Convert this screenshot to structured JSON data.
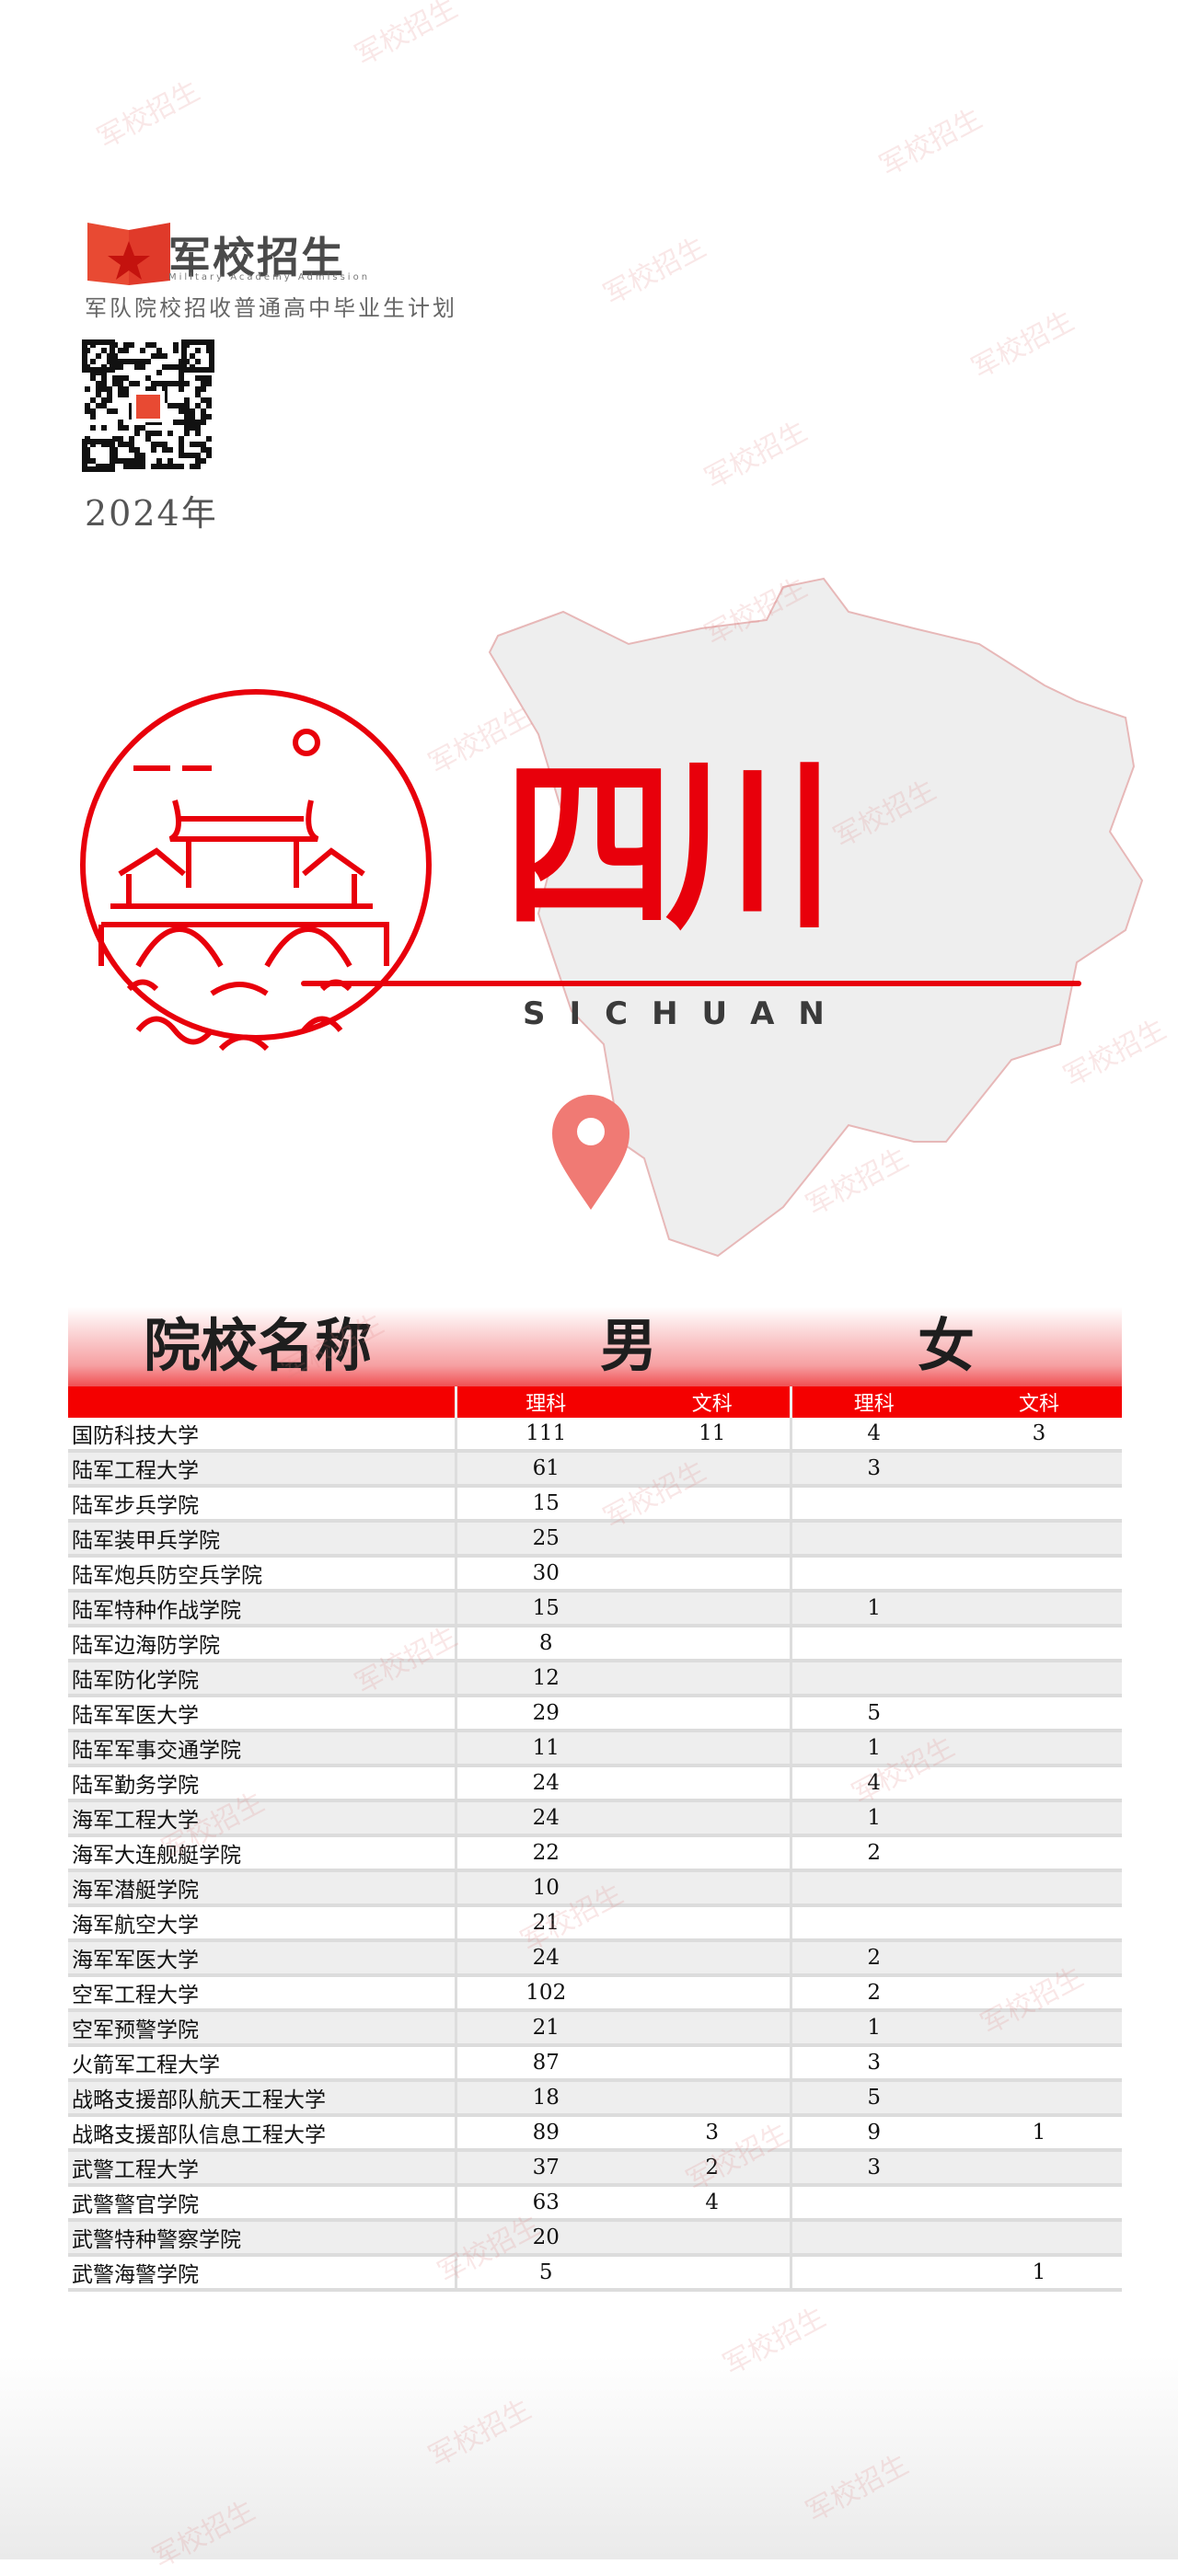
{
  "brand": {
    "name": "军校招生",
    "tagline": "Military Academy Admission",
    "subtitle": "军队院校招收普通高中毕业生计划",
    "year": "2024年",
    "accent": "#e8000b"
  },
  "hero": {
    "province": "四川",
    "pinyin": "SICHUAN",
    "pin_icon": "map-pin-icon",
    "emblem_icon": "bridge-pavilion-emblem-icon"
  },
  "watermark": "军校招生",
  "table": {
    "band_headers": {
      "name": "院校名称",
      "male": "男",
      "female": "女"
    },
    "sub_headers": [
      "",
      "理科",
      "文科",
      "理科",
      "文科"
    ],
    "rows": [
      [
        "国防科技大学",
        "111",
        "11",
        "4",
        "3"
      ],
      [
        "陆军工程大学",
        "61",
        "",
        "3",
        ""
      ],
      [
        "陆军步兵学院",
        "15",
        "",
        "",
        ""
      ],
      [
        "陆军装甲兵学院",
        "25",
        "",
        "",
        ""
      ],
      [
        "陆军炮兵防空兵学院",
        "30",
        "",
        "",
        ""
      ],
      [
        "陆军特种作战学院",
        "15",
        "",
        "1",
        ""
      ],
      [
        "陆军边海防学院",
        "8",
        "",
        "",
        ""
      ],
      [
        "陆军防化学院",
        "12",
        "",
        "",
        ""
      ],
      [
        "陆军军医大学",
        "29",
        "",
        "5",
        ""
      ],
      [
        "陆军军事交通学院",
        "11",
        "",
        "1",
        ""
      ],
      [
        "陆军勤务学院",
        "24",
        "",
        "4",
        ""
      ],
      [
        "海军工程大学",
        "24",
        "",
        "1",
        ""
      ],
      [
        "海军大连舰艇学院",
        "22",
        "",
        "2",
        ""
      ],
      [
        "海军潜艇学院",
        "10",
        "",
        "",
        ""
      ],
      [
        "海军航空大学",
        "21",
        "",
        "",
        ""
      ],
      [
        "海军军医大学",
        "24",
        "",
        "2",
        ""
      ],
      [
        "空军工程大学",
        "102",
        "",
        "2",
        ""
      ],
      [
        "空军预警学院",
        "21",
        "",
        "1",
        ""
      ],
      [
        "火箭军工程大学",
        "87",
        "",
        "3",
        ""
      ],
      [
        "战略支援部队航天工程大学",
        "18",
        "",
        "5",
        ""
      ],
      [
        "战略支援部队信息工程大学",
        "89",
        "3",
        "9",
        "1"
      ],
      [
        "武警工程大学",
        "37",
        "2",
        "3",
        ""
      ],
      [
        "武警警官学院",
        "63",
        "4",
        "",
        ""
      ],
      [
        "武警特种警察学院",
        "20",
        "",
        "",
        ""
      ],
      [
        "武警海警学院",
        "5",
        "",
        "",
        "1"
      ]
    ]
  }
}
